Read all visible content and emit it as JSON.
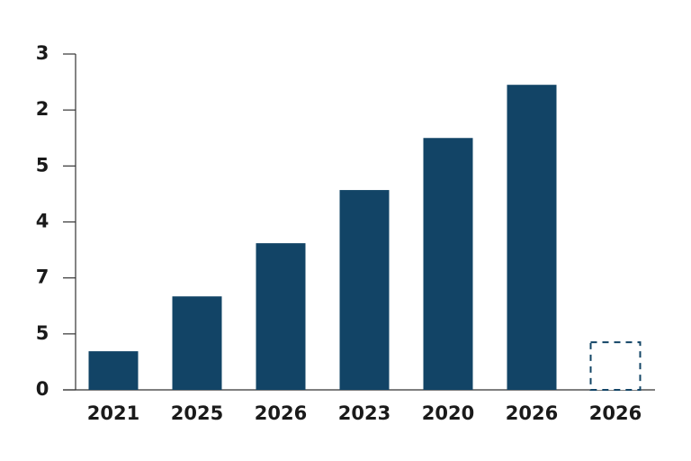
{
  "chart_data": {
    "type": "bar",
    "categories": [
      "2021",
      "2025",
      "2026",
      "2023",
      "2020",
      "2026",
      "2026"
    ],
    "values": [
      0.69,
      1.67,
      2.62,
      3.57,
      4.5,
      5.45,
      0.85
    ],
    "bar_styles": [
      "solid",
      "solid",
      "solid",
      "solid",
      "solid",
      "solid",
      "dashed"
    ],
    "color": "#124466",
    "ylim": [
      0,
      6
    ],
    "yticks": [
      0,
      {
        "value": 1,
        "label": "5"
      },
      {
        "value": 2,
        "label": "7"
      },
      {
        "value": 3,
        "label": "4"
      },
      {
        "value": 4,
        "label": "5"
      },
      {
        "value": 5,
        "label": "2"
      },
      {
        "value": 6,
        "label": "3"
      }
    ],
    "grid": false
  }
}
